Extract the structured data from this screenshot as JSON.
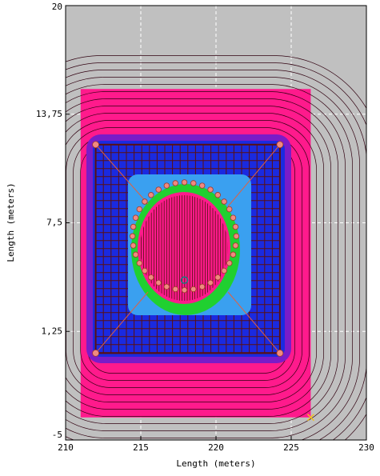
{
  "chart_data": {
    "type": "contour",
    "xlabel": "Length (meters)",
    "ylabel": "Length (meters)",
    "xlim": [
      210,
      230
    ],
    "ylim": [
      -5,
      20
    ],
    "xticks": [
      210,
      215,
      220,
      225,
      230
    ],
    "yticks": [
      -5,
      {
        "value": 1.25,
        "label": "1,25"
      },
      {
        "value": 7.5,
        "label": "7,5"
      },
      {
        "value": 13.75,
        "label": "13,75"
      },
      20
    ],
    "grid": true,
    "background": "#c0c0c0",
    "field": {
      "color": "#ff1a8c",
      "x": [
        211,
        226.3
      ],
      "y": [
        -3.7,
        15.2
      ]
    },
    "grid_conductor": {
      "color": "#5a1010",
      "x": [
        212,
        224.25
      ],
      "y": [
        0,
        12
      ]
    },
    "series": [
      {
        "color": "#f08a80",
        "x": [
          212,
          224.25,
          212,
          224.25
        ],
        "y": [
          12,
          12,
          0,
          0
        ]
      },
      {
        "color": "#f08a80",
        "x": [
          221.35,
          221.3,
          221.14,
          220.89,
          220.54,
          220.12,
          219.63,
          219.08,
          218.5,
          217.9,
          217.3,
          216.72,
          216.18,
          215.68,
          215.26,
          214.91,
          214.66,
          214.5,
          214.45,
          214.5,
          214.66,
          214.91,
          215.26,
          215.68,
          216.18,
          216.72,
          217.3,
          217.9,
          218.5,
          219.08,
          219.63,
          220.12,
          220.54,
          220.89,
          221.14,
          221.3
        ],
        "y": [
          6.73,
          7.27,
          7.79,
          8.28,
          8.72,
          9.1,
          9.41,
          9.64,
          9.78,
          9.83,
          9.78,
          9.64,
          9.41,
          9.1,
          8.72,
          8.28,
          7.79,
          7.27,
          6.73,
          6.19,
          5.67,
          5.18,
          4.74,
          4.36,
          4.05,
          3.82,
          3.68,
          3.63,
          3.68,
          3.82,
          4.05,
          4.36,
          4.74,
          5.18,
          5.67,
          6.19
        ]
      }
    ],
    "markers": [
      {
        "color": "#108080",
        "x": 217.9,
        "y": 4.2
      },
      {
        "color": "#f0c020",
        "x": 226.3,
        "y": -3.7
      }
    ]
  }
}
